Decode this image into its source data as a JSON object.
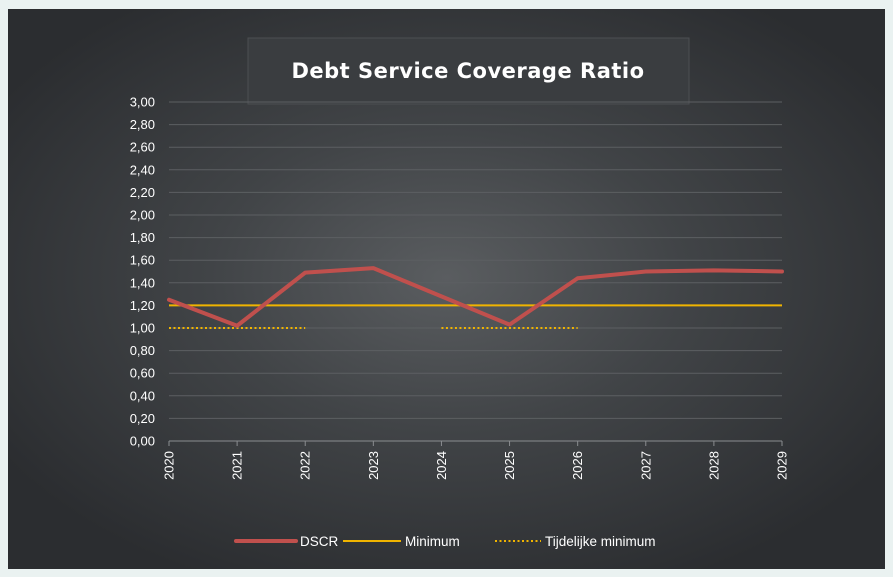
{
  "chart_data": {
    "type": "line",
    "title": "Debt Service Coverage Ratio",
    "xlabel": "",
    "ylabel": "",
    "categories": [
      "2020",
      "2021",
      "2022",
      "2023",
      "2024",
      "2025",
      "2026",
      "2027",
      "2028",
      "2029"
    ],
    "y_ticks": [
      "0,00",
      "0,20",
      "0,40",
      "0,60",
      "0,80",
      "1,00",
      "1,20",
      "1,40",
      "1,60",
      "1,80",
      "2,00",
      "2,20",
      "2,40",
      "2,60",
      "2,80",
      "3,00"
    ],
    "ylim": [
      0,
      3
    ],
    "grid": true,
    "legend_position": "bottom",
    "series": [
      {
        "name": "DSCR",
        "style": "thick-solid",
        "color": "#c0504d",
        "values": [
          1.25,
          1.02,
          1.49,
          1.53,
          1.28,
          1.03,
          1.44,
          1.5,
          1.51,
          1.5
        ]
      },
      {
        "name": "Minimum",
        "style": "solid",
        "color": "#f0b400",
        "values": [
          1.2,
          1.2,
          1.2,
          1.2,
          1.2,
          1.2,
          1.2,
          1.2,
          1.2,
          1.2
        ]
      },
      {
        "name": "Tijdelijke minimum",
        "style": "dotted",
        "color": "#f0b400",
        "values": [
          1.0,
          1.0,
          1.0,
          null,
          1.0,
          1.0,
          1.0,
          null,
          null,
          null
        ]
      }
    ]
  },
  "colors": {
    "background_dark": "#2b2d30",
    "grid": "#5c5f62",
    "text": "#ffffff"
  }
}
